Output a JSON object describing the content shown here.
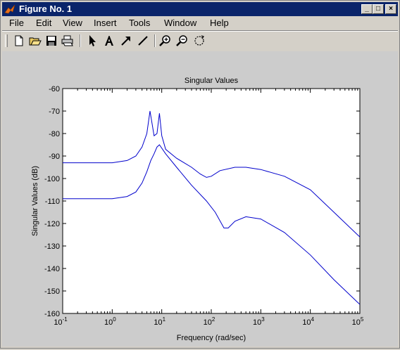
{
  "window": {
    "title": "Figure No. 1",
    "minimize_label": "_",
    "maximize_label": "□",
    "close_label": "×"
  },
  "menu": [
    "File",
    "Edit",
    "View",
    "Insert",
    "Tools",
    "Window",
    "Help"
  ],
  "toolbar": {
    "icons": [
      "new-file-icon",
      "open-folder-icon",
      "save-icon",
      "print-icon",
      "select-arrow-icon",
      "insert-text-icon",
      "insert-arrow-icon",
      "insert-line-icon",
      "zoom-in-icon",
      "zoom-out-icon",
      "rotate-icon"
    ]
  },
  "chart_data": {
    "type": "line",
    "title": "Singular Values",
    "xlabel": "Frequency (rad/sec)",
    "ylabel": "Singular Values (dB)",
    "xscale": "log",
    "xlim": [
      0.1,
      100000
    ],
    "ylim": [
      -160,
      -60
    ],
    "x_ticks": [
      {
        "base": "10",
        "exp": "-1"
      },
      {
        "base": "10",
        "exp": "0"
      },
      {
        "base": "10",
        "exp": "1"
      },
      {
        "base": "10",
        "exp": "2"
      },
      {
        "base": "10",
        "exp": "3"
      },
      {
        "base": "10",
        "exp": "4"
      },
      {
        "base": "10",
        "exp": "5"
      }
    ],
    "y_ticks": [
      "-60",
      "-70",
      "-80",
      "-90",
      "-100",
      "-110",
      "-120",
      "-130",
      "-140",
      "-150",
      "-160"
    ],
    "grid": false,
    "line_color": "#0000cc",
    "series": [
      {
        "points": [
          [
            0.1,
            -93
          ],
          [
            1,
            -93
          ],
          [
            2,
            -92
          ],
          [
            3,
            -90
          ],
          [
            4,
            -86
          ],
          [
            5,
            -80
          ],
          [
            5.8,
            -70
          ],
          [
            7,
            -81
          ],
          [
            8,
            -80
          ],
          [
            9,
            -71
          ],
          [
            10,
            -81
          ],
          [
            12,
            -87
          ],
          [
            20,
            -91
          ],
          [
            40,
            -95
          ],
          [
            60,
            -98
          ],
          [
            80,
            -99.5
          ],
          [
            100,
            -99
          ],
          [
            150,
            -96.5
          ],
          [
            300,
            -95
          ],
          [
            500,
            -95
          ],
          [
            1000,
            -96
          ],
          [
            3000,
            -99
          ],
          [
            10000,
            -105
          ],
          [
            30000,
            -115
          ],
          [
            100000,
            -126
          ]
        ]
      },
      {
        "points": [
          [
            0.1,
            -109
          ],
          [
            1,
            -109
          ],
          [
            2,
            -108
          ],
          [
            3,
            -106
          ],
          [
            4,
            -102
          ],
          [
            5,
            -97
          ],
          [
            6,
            -92
          ],
          [
            7,
            -89
          ],
          [
            8,
            -86
          ],
          [
            9,
            -85
          ],
          [
            12,
            -89
          ],
          [
            20,
            -95
          ],
          [
            40,
            -103
          ],
          [
            80,
            -110
          ],
          [
            120,
            -115
          ],
          [
            180,
            -122
          ],
          [
            220,
            -122
          ],
          [
            300,
            -119
          ],
          [
            500,
            -117
          ],
          [
            1000,
            -118
          ],
          [
            3000,
            -124
          ],
          [
            10000,
            -134
          ],
          [
            30000,
            -145
          ],
          [
            100000,
            -156
          ]
        ]
      }
    ]
  }
}
